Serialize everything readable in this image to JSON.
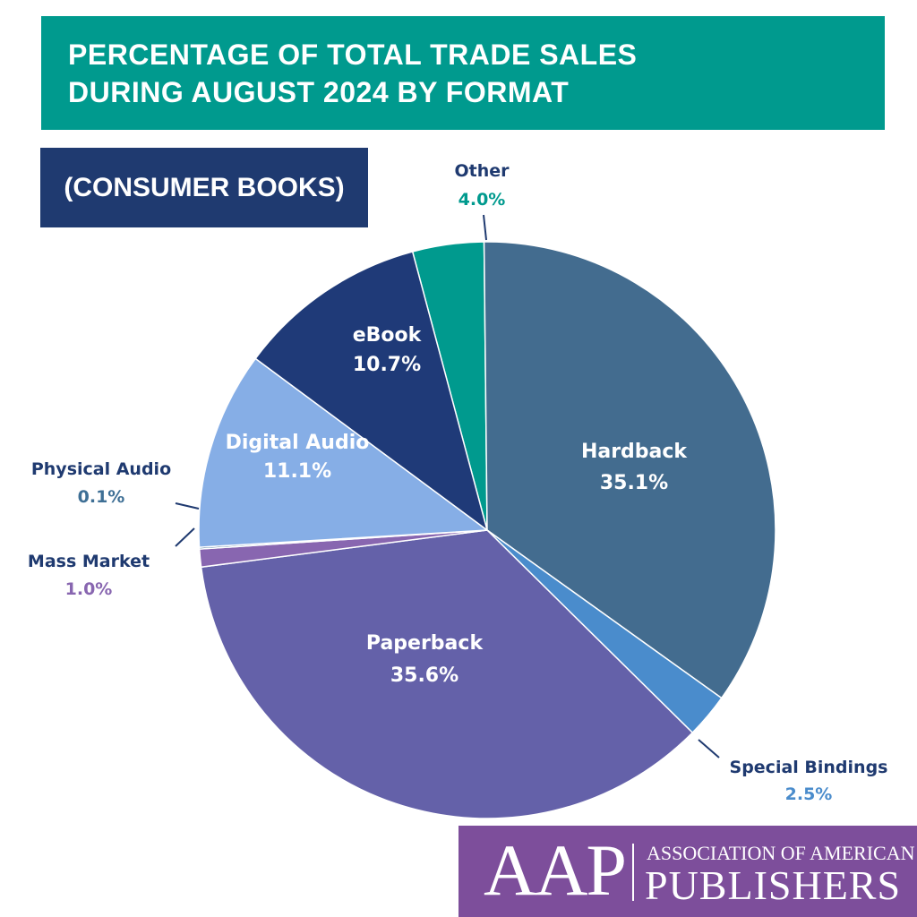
{
  "header": {
    "title_line1": "PERCENTAGE OF TOTAL TRADE SALES",
    "title_line2": "DURING AUGUST 2024 BY FORMAT",
    "subtitle": "(CONSUMER BOOKS)"
  },
  "logo": {
    "mark": "AAP",
    "line1": "ASSOCIATION OF AMERICAN",
    "line2": "PUBLISHERS"
  },
  "chart_data": {
    "type": "pie",
    "title": "PERCENTAGE OF TOTAL TRADE SALES DURING AUGUST 2024 BY FORMAT",
    "subtitle": "(CONSUMER BOOKS)",
    "unit": "%",
    "slices": [
      {
        "label": "Other",
        "value": 4.0,
        "value_label": "4.0%",
        "color": "#009a8e",
        "label_color": "#1f3a70",
        "value_color": "#009a8e",
        "placement": "outside"
      },
      {
        "label": "Hardback",
        "value": 35.1,
        "value_label": "35.1%",
        "color": "#436c8f",
        "label_color": "#ffffff",
        "value_color": "#ffffff",
        "placement": "inside"
      },
      {
        "label": "Special Bindings",
        "value": 2.5,
        "value_label": "2.5%",
        "color": "#4a8ccc",
        "label_color": "#1f3a70",
        "value_color": "#4a8ccc",
        "placement": "outside"
      },
      {
        "label": "Paperback",
        "value": 35.6,
        "value_label": "35.6%",
        "color": "#6461a9",
        "label_color": "#ffffff",
        "value_color": "#ffffff",
        "placement": "inside"
      },
      {
        "label": "Mass Market",
        "value": 1.0,
        "value_label": "1.0%",
        "color": "#8866b0",
        "label_color": "#1f3a70",
        "value_color": "#8866b0",
        "placement": "outside"
      },
      {
        "label": "Physical Audio",
        "value": 0.1,
        "value_label": "0.1%",
        "color": "#3e6f95",
        "label_color": "#1f3a70",
        "value_color": "#3e6f95",
        "placement": "outside"
      },
      {
        "label": "Digital Audio",
        "value": 11.1,
        "value_label": "11.1%",
        "color": "#86aee6",
        "label_color": "#ffffff",
        "value_color": "#ffffff",
        "placement": "inside"
      },
      {
        "label": "eBook",
        "value": 10.7,
        "value_label": "10.7%",
        "color": "#1f3a78",
        "label_color": "#ffffff",
        "value_color": "#ffffff",
        "placement": "inside"
      }
    ]
  }
}
